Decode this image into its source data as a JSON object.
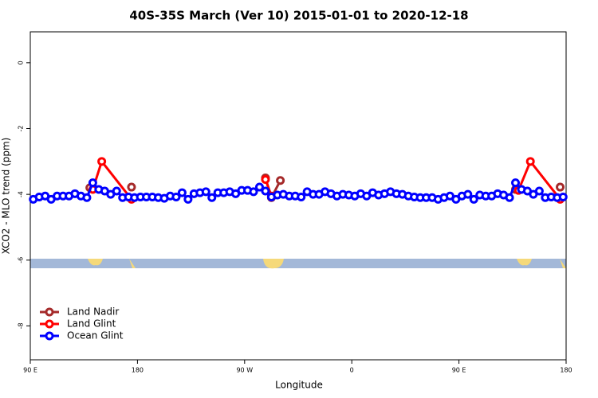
{
  "chart_data": {
    "type": "line",
    "title": "40S-35S March (Ver 10)   2015-01-01 to 2020-12-18",
    "x_label": "Longitude",
    "y_label": "XCO2 - MLO trend (ppm)",
    "xlim": [
      90,
      540
    ],
    "ylim": [
      -9.03,
      0.94
    ],
    "xticks": [
      {
        "value": 90,
        "label": "90 E"
      },
      {
        "value": 180,
        "label": "180"
      },
      {
        "value": 270,
        "label": "90 W"
      },
      {
        "value": 360,
        "label": "0"
      },
      {
        "value": 450,
        "label": "90 E"
      },
      {
        "value": 540,
        "label": "180"
      }
    ],
    "yticks": [
      0,
      -2,
      -4,
      -6,
      -8
    ],
    "legend": "bottom-left",
    "series": [
      {
        "name": "Land Nadir",
        "color": "#a52a2a",
        "x": [
          140,
          null,
          175,
          null,
          287.5,
          292.5,
          300,
          null,
          497.5,
          null,
          535
        ],
        "values": [
          -3.8,
          null,
          -3.78,
          null,
          -3.5,
          -4.1,
          -3.58,
          null,
          -3.85,
          null,
          -3.78
        ]
      },
      {
        "name": "Land Glint",
        "color": "#ff0000",
        "x": [
          142.5,
          150,
          175,
          null,
          287.5,
          292.5,
          null,
          500,
          510,
          535
        ],
        "values": [
          -3.85,
          -3.0,
          -4.15,
          null,
          -3.55,
          -4.05,
          null,
          -3.88,
          -3.0,
          -4.15
        ]
      },
      {
        "name": "Ocean Glint",
        "color": "#0000ff",
        "x": [
          92.5,
          97.5,
          102.5,
          107.5,
          112.5,
          117.5,
          122.5,
          127.5,
          132.5,
          137.5,
          142.5,
          147.5,
          152.5,
          157.5,
          162.5,
          167.5,
          172.5,
          177.5,
          182.5,
          187.5,
          192.5,
          197.5,
          202.5,
          207.5,
          212.5,
          217.5,
          222.5,
          227.5,
          232.5,
          237.5,
          242.5,
          247.5,
          252.5,
          257.5,
          262.5,
          267.5,
          272.5,
          277.5,
          282.5,
          287.5,
          292.5,
          297.5,
          302.5,
          307.5,
          312.5,
          317.5,
          322.5,
          327.5,
          332.5,
          337.5,
          342.5,
          347.5,
          352.5,
          357.5,
          362.5,
          367.5,
          372.5,
          377.5,
          382.5,
          387.5,
          392.5,
          397.5,
          402.5,
          407.5,
          412.5,
          417.5,
          422.5,
          427.5,
          432.5,
          437.5,
          442.5,
          447.5,
          452.5,
          457.5,
          462.5,
          467.5,
          472.5,
          477.5,
          482.5,
          487.5,
          492.5,
          497.5,
          502.5,
          507.5,
          512.5,
          517.5,
          522.5,
          527.5,
          532.5,
          537.5
        ],
        "values": [
          -4.15,
          -4.08,
          -4.05,
          -4.15,
          -4.05,
          -4.05,
          -4.05,
          -3.98,
          -4.05,
          -4.1,
          -3.65,
          -3.85,
          -3.9,
          -4.0,
          -3.9,
          -4.1,
          -4.08,
          -4.1,
          -4.08,
          -4.08,
          -4.08,
          -4.1,
          -4.12,
          -4.05,
          -4.08,
          -3.95,
          -4.15,
          -3.98,
          -3.95,
          -3.92,
          -4.1,
          -3.95,
          -3.95,
          -3.92,
          -3.98,
          -3.88,
          -3.88,
          -3.92,
          -3.78,
          -3.9,
          -4.08,
          -4.02,
          -4.0,
          -4.05,
          -4.05,
          -4.08,
          -3.92,
          -4.0,
          -4.0,
          -3.92,
          -3.98,
          -4.05,
          -4.0,
          -4.02,
          -4.05,
          -3.98,
          -4.05,
          -3.95,
          -4.02,
          -3.98,
          -3.92,
          -3.98,
          -4.0,
          -4.05,
          -4.08,
          -4.1,
          -4.1,
          -4.1,
          -4.15,
          -4.1,
          -4.05,
          -4.15,
          -4.05,
          -4.0,
          -4.15,
          -4.02,
          -4.05,
          -4.05,
          -3.98,
          -4.02,
          -4.1,
          -3.65,
          -3.85,
          -3.9,
          -4.0,
          -3.9,
          -4.1,
          -4.08,
          -4.1,
          -4.08
        ]
      }
    ]
  }
}
